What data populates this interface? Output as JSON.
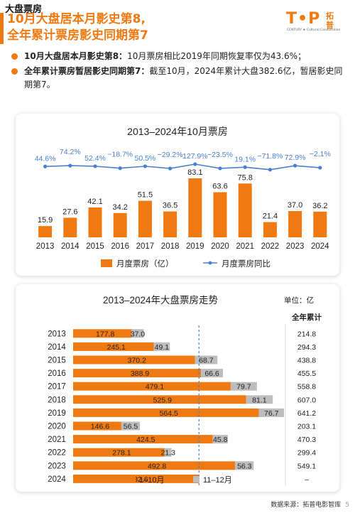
{
  "header": {
    "section_label": "大盘票房",
    "title_line1": "10月大盘居本月影史第8,",
    "title_line2": "全年累计票房影史同期第7",
    "logo_text": "T•P",
    "logo_sub": "CENTURY ★ Cultural Consultation",
    "logo_cn": "拓普"
  },
  "bullets": [
    {
      "lead": "10月大盘居本月影史第8：",
      "text": "10月票房相比2019年同期恢复率仅为43.6%；"
    },
    {
      "lead": "全年累计票房暂居影史同期第7：",
      "text": "截至10月，2024年累计大盘382.6亿，暂居影史同期第7。"
    }
  ],
  "colors": {
    "orange": "#f07a12",
    "blue": "#4a7fd0",
    "gray": "#bdbdbd"
  },
  "chart_data": [
    {
      "type": "bar",
      "title": "2013–2024年10月票房",
      "categories": [
        "2013",
        "2014",
        "2015",
        "2016",
        "2017",
        "2018",
        "2019",
        "2020",
        "2021",
        "2022",
        "2023",
        "2024"
      ],
      "series": [
        {
          "name": "月度票房（亿）",
          "kind": "bar",
          "values": [
            15.9,
            27.6,
            42.1,
            34.2,
            51.5,
            36.5,
            83.1,
            63.6,
            75.8,
            21.4,
            37.0,
            36.2
          ]
        },
        {
          "name": "月度票房同比",
          "kind": "line",
          "values": [
            44.6,
            74.2,
            52.4,
            -18.7,
            50.5,
            -29.2,
            127.9,
            -23.5,
            19.1,
            -71.8,
            72.9,
            -2.1
          ],
          "labels": [
            "44.6%",
            "74.2%",
            "52.4%",
            "−18.7%",
            "50.5%",
            "−29.2%",
            "127.9%",
            "−23.5%",
            "19.1%",
            "−71.8%",
            "72.9%",
            "−2.1%"
          ]
        }
      ],
      "bar_labels": [
        "15.9",
        "27.6",
        "42.1",
        "34.2",
        "51.5",
        "36.5",
        "83.1",
        "63.6",
        "75.8",
        "21.4",
        "37.0",
        "36.2"
      ],
      "legend": "bottom"
    },
    {
      "type": "bar",
      "orientation": "horizontal-stacked",
      "title": "2013–2024年大盘票房走势",
      "unit_label": "单位：亿",
      "total_header": "全年累计",
      "categories": [
        "2013",
        "2014",
        "2015",
        "2016",
        "2017",
        "2018",
        "2019",
        "2020",
        "2021",
        "2022",
        "2023",
        "2024"
      ],
      "series": [
        {
          "name": "1–10月",
          "values": [
            177.8,
            245.1,
            370.2,
            388.9,
            479.1,
            525.9,
            564.5,
            146.6,
            424.5,
            278.1,
            492.8,
            382.6
          ],
          "labels": [
            "177.8",
            "245.1",
            "370.2",
            "388.9",
            "479.1",
            "525.9",
            "564.5",
            "146.6",
            "424.5",
            "278.1",
            "492.8",
            "382.6"
          ]
        },
        {
          "name": "11–12月",
          "values": [
            37.0,
            49.1,
            68.7,
            66.6,
            79.7,
            81.1,
            76.7,
            56.5,
            45.8,
            21.3,
            56.3,
            0
          ],
          "labels": [
            "37.0",
            "49.1",
            "68.7",
            "66.6",
            "79.7",
            "81.1",
            "76.7",
            "56.5",
            "45.8",
            "21.3",
            "56.3",
            ""
          ]
        }
      ],
      "totals": [
        "214.8",
        "294.3",
        "438.8",
        "455.5",
        "558.8",
        "607.0",
        "641.2",
        "203.1",
        "470.3",
        "299.4",
        "549.1",
        "–"
      ],
      "reference_line_value": 382.6,
      "legend": "bottom"
    }
  ],
  "footer": {
    "source": "数据来源：拓普电影智库",
    "page": "5"
  }
}
